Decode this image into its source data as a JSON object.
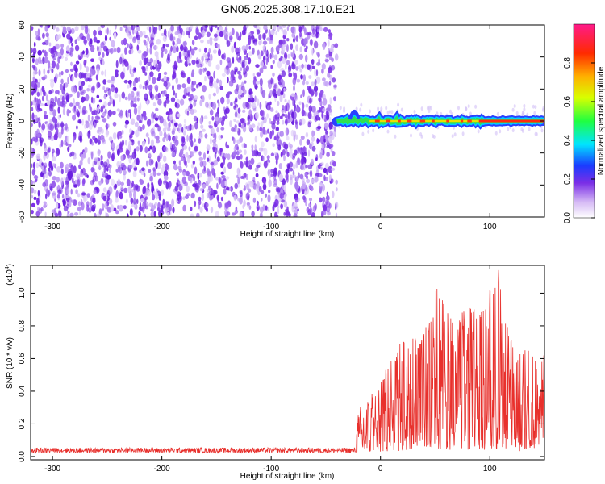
{
  "title": "GN05.2025.308.17.10.E21",
  "colors": {
    "axis": "#000000",
    "snr_line": "#e8302c",
    "spectrogram_purple": "#7a2ee6"
  },
  "chart_data": [
    {
      "type": "heatmap",
      "ylabel": "Frequency (Hz)",
      "xlabel": "Height of straight line (km)",
      "xlim": [
        -320,
        150
      ],
      "ylim": [
        -60,
        60
      ],
      "xticks": [
        -300,
        -200,
        -100,
        0,
        100
      ],
      "yticks": [
        -60,
        -40,
        -20,
        0,
        20,
        40,
        60
      ],
      "noise_region_x": [
        -320,
        -40
      ],
      "signal_region_x": [
        -40,
        150
      ],
      "signal_frequency_hz": 0,
      "colorbar": {
        "label": "Normalized spectral amplitude",
        "range": [
          0,
          1
        ],
        "ticks": [
          0.0,
          0.2,
          0.4,
          0.6,
          0.8
        ]
      }
    },
    {
      "type": "line",
      "ylabel": "SNR (10 * v/v)",
      "multiplier_label": "(x10",
      "multiplier_exp": "4",
      "multiplier_close": ")",
      "xlabel": "Height of straight line (km)",
      "xlim": [
        -320,
        150
      ],
      "ylim": [
        -0.02,
        1.17
      ],
      "xticks": [
        -300,
        -200,
        -100,
        0,
        100
      ],
      "yticks": [
        0.0,
        0.2,
        0.4,
        0.6,
        0.8,
        1.0
      ],
      "noise_floor": {
        "x_range": [
          -320,
          -22
        ],
        "level": 0.04
      },
      "envelope": [
        {
          "x": -22,
          "y": 0.17
        },
        {
          "x": -15,
          "y": 0.45
        },
        {
          "x": -5,
          "y": 0.35
        },
        {
          "x": 5,
          "y": 0.53
        },
        {
          "x": 15,
          "y": 0.62
        },
        {
          "x": 25,
          "y": 0.8
        },
        {
          "x": 35,
          "y": 0.7
        },
        {
          "x": 45,
          "y": 0.82
        },
        {
          "x": 50,
          "y": 1.06
        },
        {
          "x": 60,
          "y": 0.95
        },
        {
          "x": 70,
          "y": 0.82
        },
        {
          "x": 80,
          "y": 0.92
        },
        {
          "x": 90,
          "y": 0.88
        },
        {
          "x": 100,
          "y": 1.0
        },
        {
          "x": 108,
          "y": 1.16
        },
        {
          "x": 115,
          "y": 0.85
        },
        {
          "x": 125,
          "y": 0.6
        },
        {
          "x": 135,
          "y": 0.7
        },
        {
          "x": 145,
          "y": 0.55
        },
        {
          "x": 150,
          "y": 0.62
        }
      ]
    }
  ]
}
